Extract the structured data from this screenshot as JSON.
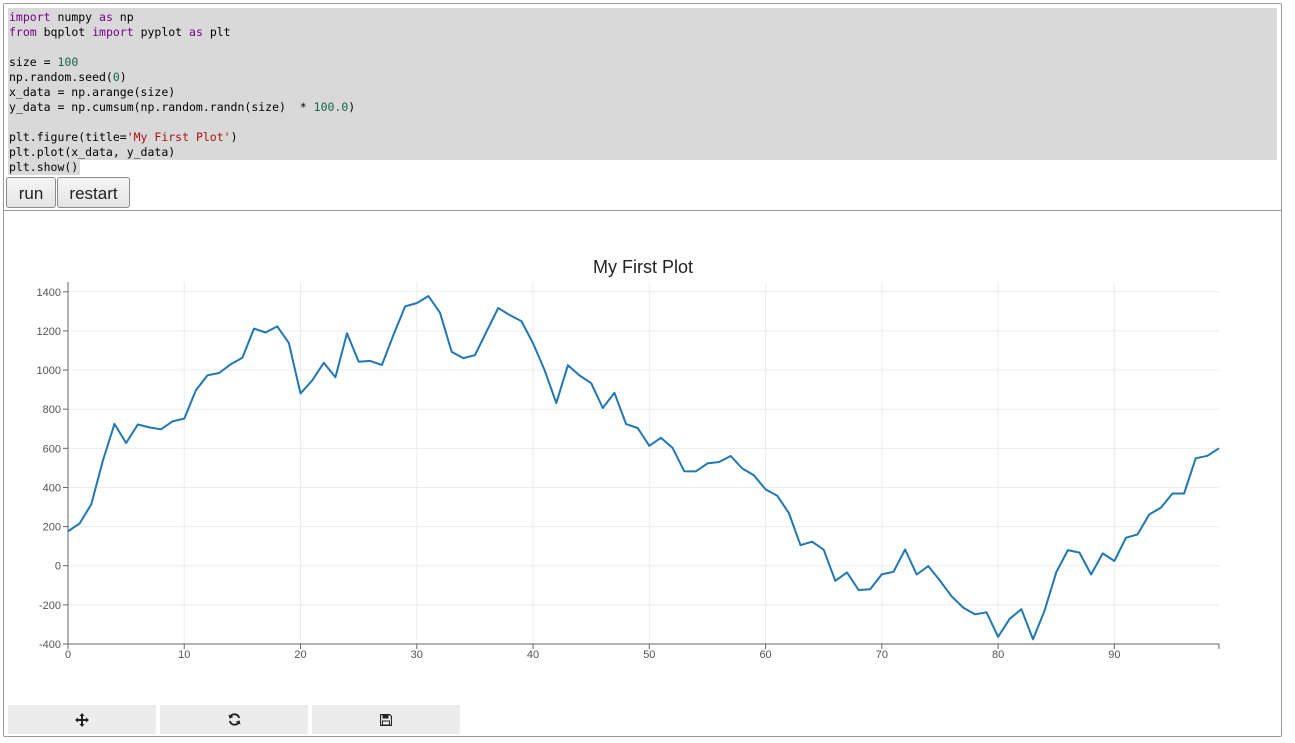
{
  "code": {
    "lines": [
      [
        {
          "t": "import",
          "c": "kw"
        },
        {
          "t": " numpy "
        },
        {
          "t": "as",
          "c": "kw"
        },
        {
          "t": " np"
        }
      ],
      [
        {
          "t": "from",
          "c": "kw"
        },
        {
          "t": " bqplot "
        },
        {
          "t": "import",
          "c": "kw"
        },
        {
          "t": " pyplot "
        },
        {
          "t": "as",
          "c": "kw"
        },
        {
          "t": " plt"
        }
      ],
      [],
      [
        {
          "t": "size = "
        },
        {
          "t": "100",
          "c": "num"
        }
      ],
      [
        {
          "t": "np.random.seed("
        },
        {
          "t": "0",
          "c": "num"
        },
        {
          "t": ")"
        }
      ],
      [
        {
          "t": "x_data = np.arange(size)"
        }
      ],
      [
        {
          "t": "y_data = np.cumsum(np.random.randn(size)  * "
        },
        {
          "t": "100.0",
          "c": "num"
        },
        {
          "t": ")"
        }
      ],
      [],
      [
        {
          "t": "plt.figure(title="
        },
        {
          "t": "'My First Plot'",
          "c": "str"
        },
        {
          "t": ")"
        }
      ],
      [
        {
          "t": "plt.plot(x_data, y_data)"
        }
      ],
      [
        {
          "t": "plt.show()"
        }
      ]
    ]
  },
  "buttons": {
    "run": "run",
    "restart": "restart"
  },
  "toolbar": {
    "pan_icon": "move-arrows-icon",
    "reset_icon": "refresh-icon",
    "save_icon": "floppy-save-icon"
  },
  "colors": {
    "line": "#1f77b4",
    "code_bg": "#d9d9d9"
  },
  "chart_data": {
    "type": "line",
    "title": "My First Plot",
    "xlabel": "",
    "ylabel": "",
    "xlim": [
      0,
      99
    ],
    "ylim": [
      -400,
      1450
    ],
    "xticks": [
      0,
      10,
      20,
      30,
      40,
      50,
      60,
      70,
      80,
      90
    ],
    "yticks": [
      -400,
      -200,
      0,
      200,
      400,
      600,
      800,
      1000,
      1200,
      1400
    ],
    "grid": true,
    "series": [
      {
        "x": [
          0,
          1,
          2,
          3,
          4,
          5,
          6,
          7,
          8,
          9,
          10,
          11,
          12,
          13,
          14,
          15,
          16,
          17,
          18,
          19,
          20,
          21,
          22,
          23,
          24,
          25,
          26,
          27,
          28,
          29,
          30,
          31,
          32,
          33,
          34,
          35,
          36,
          37,
          38,
          39,
          40,
          41,
          42,
          43,
          44,
          45,
          46,
          47,
          48,
          49,
          50,
          51,
          52,
          53,
          54,
          55,
          56,
          57,
          58,
          59,
          60,
          61,
          62,
          63,
          64,
          65,
          66,
          67,
          68,
          69,
          70,
          71,
          72,
          73,
          74,
          75,
          76,
          77,
          78,
          79,
          80,
          81,
          82,
          83,
          84,
          85,
          86,
          87,
          88,
          89,
          90,
          91,
          92,
          93,
          94,
          95,
          96,
          97,
          98,
          99
        ],
        "y": [
          176,
          216,
          314,
          538,
          725,
          627,
          722,
          707,
          697,
          738,
          752,
          897,
          973,
          985,
          1030,
          1063,
          1212,
          1192,
          1223,
          1138,
          880,
          947,
          1037,
          963,
          1188,
          1042,
          1047,
          1026,
          1180,
          1326,
          1342,
          1378,
          1293,
          1093,
          1061,
          1076,
          1196,
          1317,
          1281,
          1250,
          1136,
          998,
          831,
          1025,
          972,
          933,
          806,
          884,
          724,
          704,
          613,
          654,
          602,
          483,
          482,
          523,
          530,
          561,
          497,
          462,
          390,
          358,
          270,
          105,
          123,
          82,
          -77,
          -34,
          -124,
          -120,
          -44,
          -31,
          83,
          -45,
          -2,
          -76,
          -156,
          -214,
          -248,
          -238,
          -363,
          -271,
          -222,
          -376,
          -229,
          -34,
          80,
          67,
          -45,
          63,
          24,
          143,
          160,
          262,
          297,
          369,
          369,
          549,
          562,
          600
        ]
      }
    ]
  }
}
